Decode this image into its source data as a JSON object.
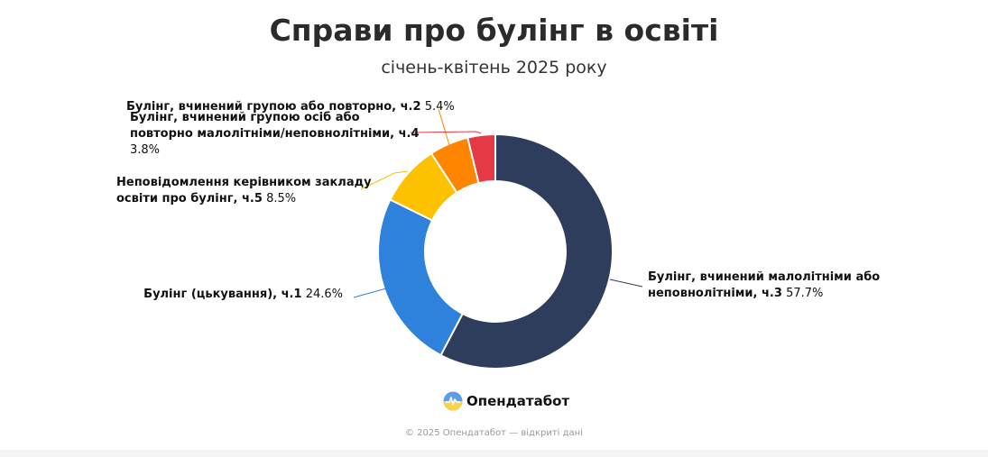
{
  "chart_data": {
    "type": "pie",
    "title": "Справи про булінг в освіті",
    "subtitle": "січень-квітень 2025 року",
    "slices": [
      {
        "name": "Булінг, вчинений малолітніми або неповнолітніми, ч.3",
        "value": 57.7,
        "value_label": "57.7%",
        "color": "#2f3d5c",
        "label_lines": [
          "Булінг, вчинений малолітніми або",
          "неповнолітніми, ч.3"
        ]
      },
      {
        "name": "Булінг (цькування), ч.1",
        "value": 24.6,
        "value_label": "24.6%",
        "color": "#2e82dc",
        "label_lines": [
          "Булінг (цькування), ч.1"
        ]
      },
      {
        "name": "Неповідомлення керівником закладу освіти про булінг, ч.5",
        "value": 8.5,
        "value_label": "8.5%",
        "color": "#fcc200",
        "label_lines": [
          "Неповідомлення керівником закладу",
          "освіти про булінг, ч.5"
        ]
      },
      {
        "name": "Булінг, вчинений групою або повторно, ч.2",
        "value": 5.4,
        "value_label": "5.4%",
        "color": "#ff8400",
        "label_lines": [
          "Булінг, вчинений групою або повторно, ч.2"
        ]
      },
      {
        "name": "Булінг, вчинений групою осіб або повторно малолітніми/неповнолітніми, ч.4",
        "value": 3.8,
        "value_label": "3.8%",
        "color": "#e63946",
        "label_lines": [
          "Булінг, вчинений групою осіб або",
          "повторно малолітніми/неповнолітніми, ч.4"
        ]
      }
    ]
  },
  "branding": {
    "logo_text": "Опендатабот",
    "footer": "© 2025 Опендатабот — відкриті дані"
  }
}
